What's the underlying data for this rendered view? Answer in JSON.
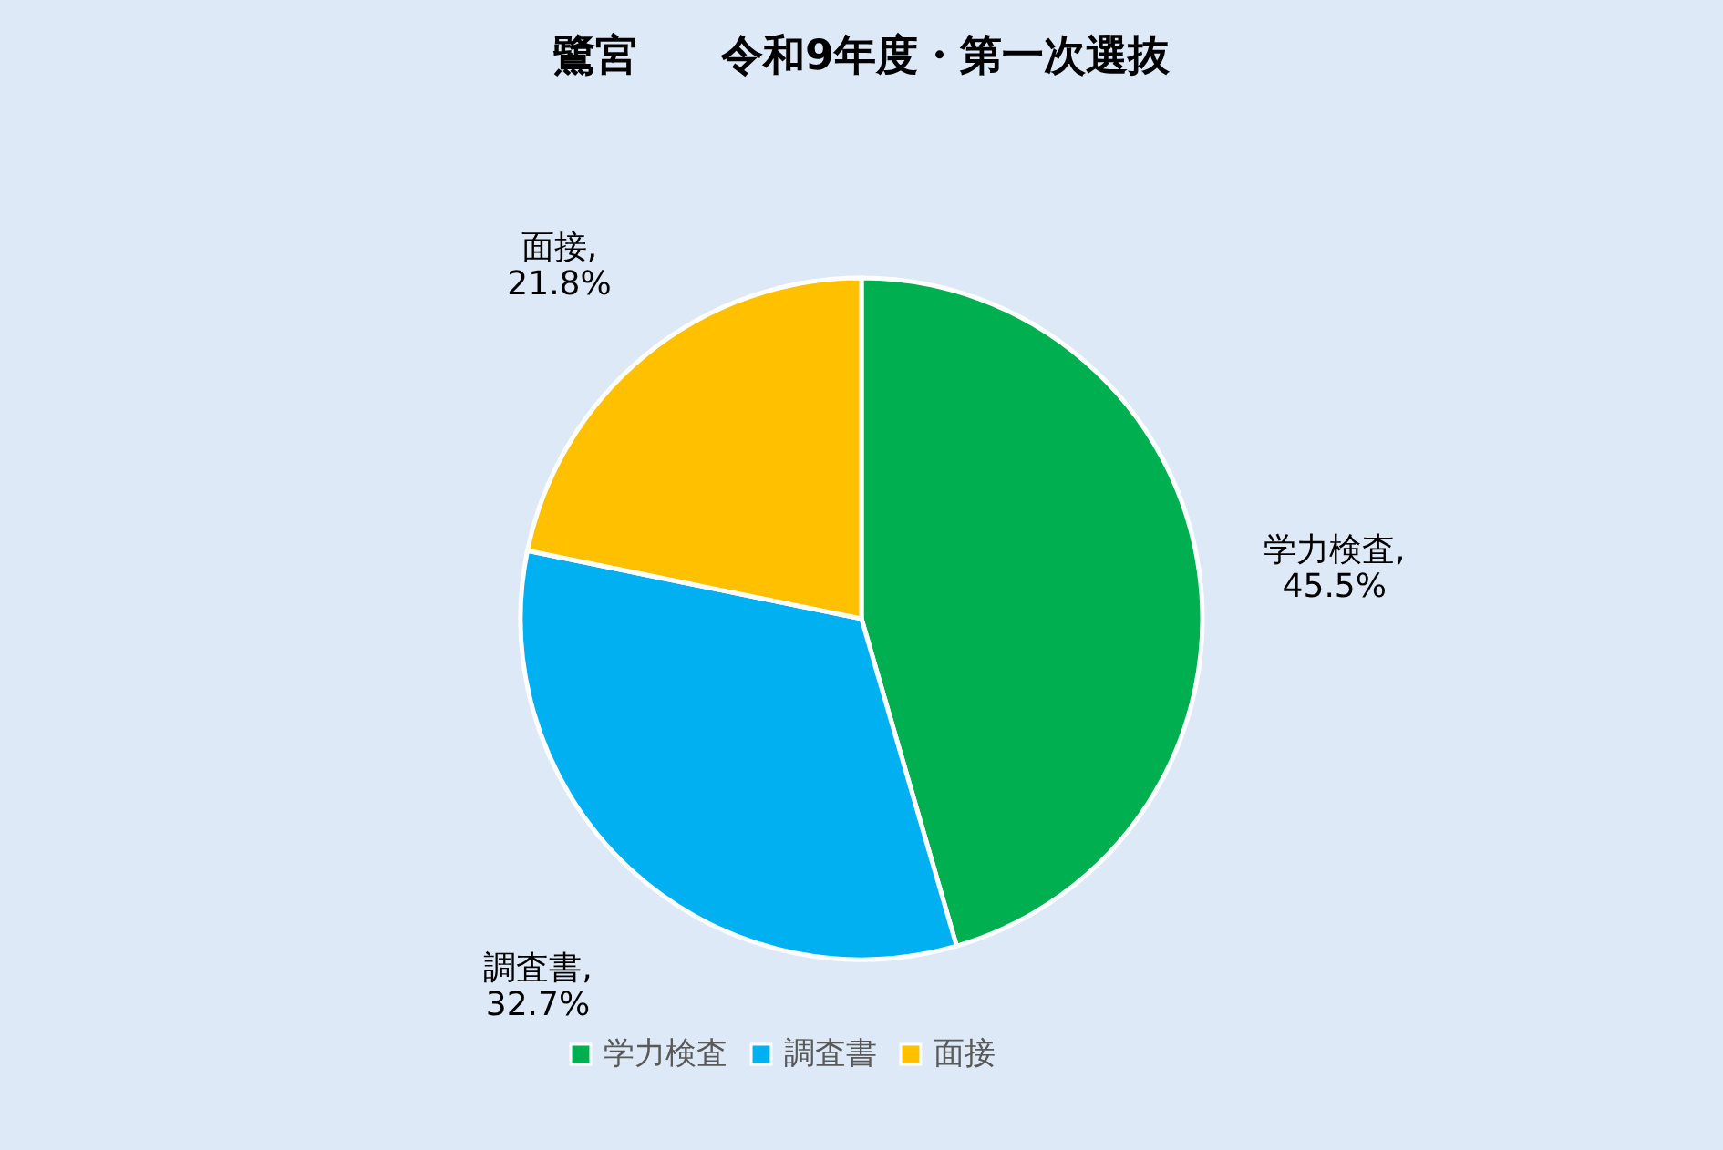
{
  "chart_data": {
    "type": "pie",
    "title": "鷺宮　　令和9年度・第一次選抜",
    "categories": [
      "学力検査",
      "調査書",
      "面接"
    ],
    "values": [
      45.5,
      32.7,
      21.8
    ],
    "colors": [
      "#00b050",
      "#00b0f0",
      "#ffc000"
    ],
    "value_labels": [
      "学力検査,\n45.5%",
      "調査書,\n32.7%",
      "面接,\n21.8%"
    ],
    "legend": "bottom"
  }
}
